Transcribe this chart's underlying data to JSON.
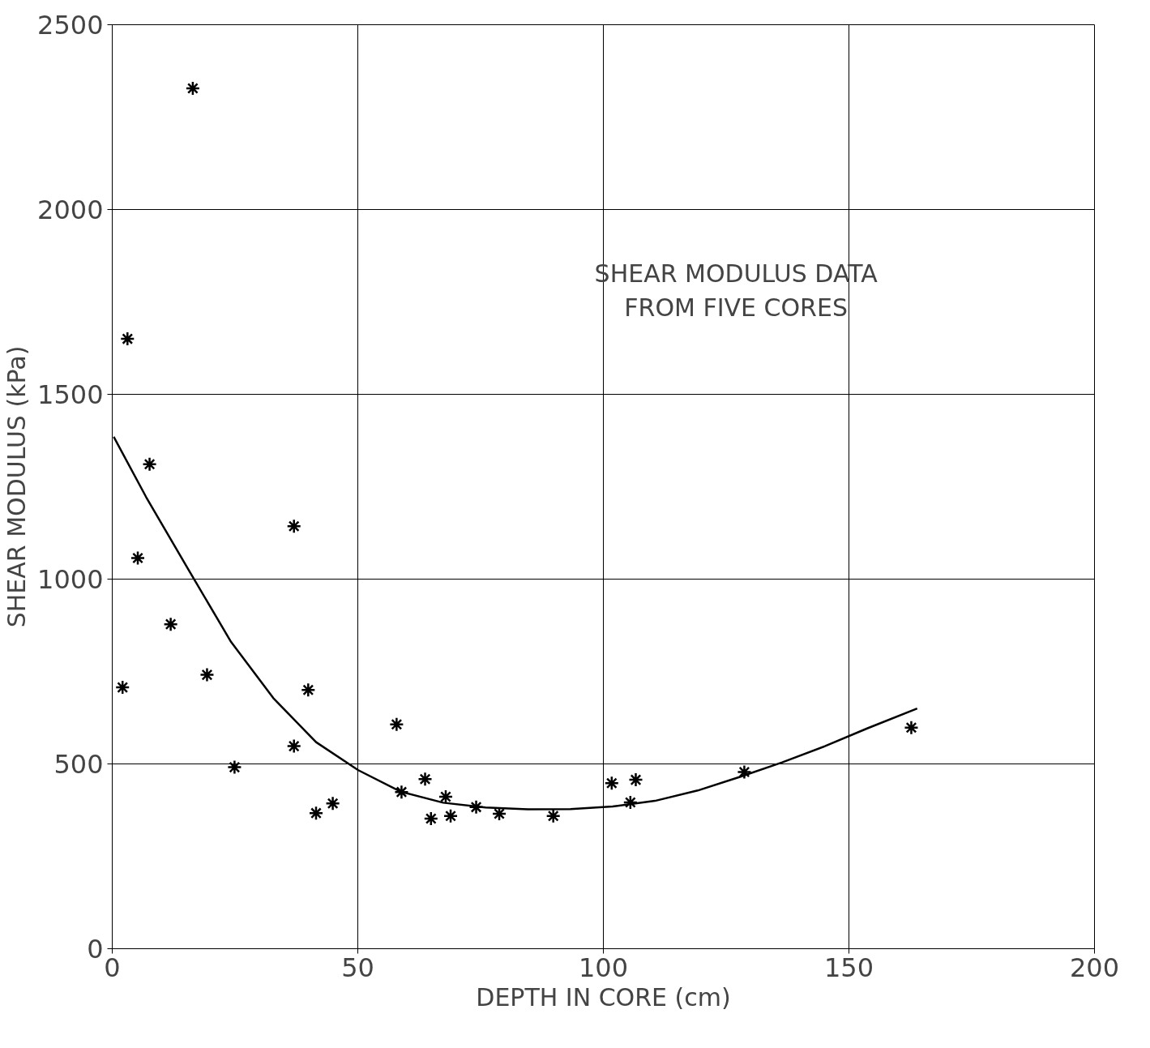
{
  "chart_data": {
    "type": "scatter",
    "xlabel": "DEPTH IN CORE (cm)",
    "ylabel": "SHEAR MODULUS (kPa)",
    "annotations": [
      "SHEAR MODULUS DATA\nFROM FIVE CORES"
    ],
    "xlim": [
      0,
      200
    ],
    "ylim": [
      0,
      2500
    ],
    "xticks": [
      0,
      50,
      100,
      150,
      200
    ],
    "yticks": [
      0,
      500,
      1000,
      1500,
      2000,
      2500
    ],
    "grid": true,
    "series": [
      {
        "marker": "cross",
        "color": "#000000",
        "x": [
          16.4,
          3.1,
          7.6,
          5.2,
          11.9,
          2.1,
          19.3,
          24.9,
          37.0,
          37.0,
          39.9,
          41.5,
          44.9,
          57.9,
          58.9,
          63.7,
          64.9,
          67.9,
          68.9,
          74.1,
          78.8,
          89.8,
          101.7,
          106.6,
          105.5,
          128.7,
          162.7
        ],
        "values": [
          2328,
          1650,
          1311,
          1057,
          878,
          707,
          741,
          491,
          1143,
          548,
          700,
          367,
          393,
          607,
          424,
          459,
          352,
          411,
          359,
          383,
          365,
          359,
          448,
          457,
          396,
          478,
          598
        ]
      },
      {
        "type": "line",
        "marker": "none",
        "color": "#000000",
        "x": [
          0.3,
          6.9,
          15.5,
          24.2,
          32.8,
          41.5,
          50.1,
          58.7,
          67.4,
          76,
          84.6,
          93.3,
          101.9,
          110.5,
          119.2,
          127.8,
          136.4,
          145.1,
          153.7,
          163.9
        ],
        "values": [
          1385,
          1222,
          1026,
          830,
          678,
          559,
          483,
          425,
          395,
          382,
          377,
          378,
          385,
          400,
          428,
          465,
          504,
          548,
          596,
          650
        ]
      }
    ]
  }
}
